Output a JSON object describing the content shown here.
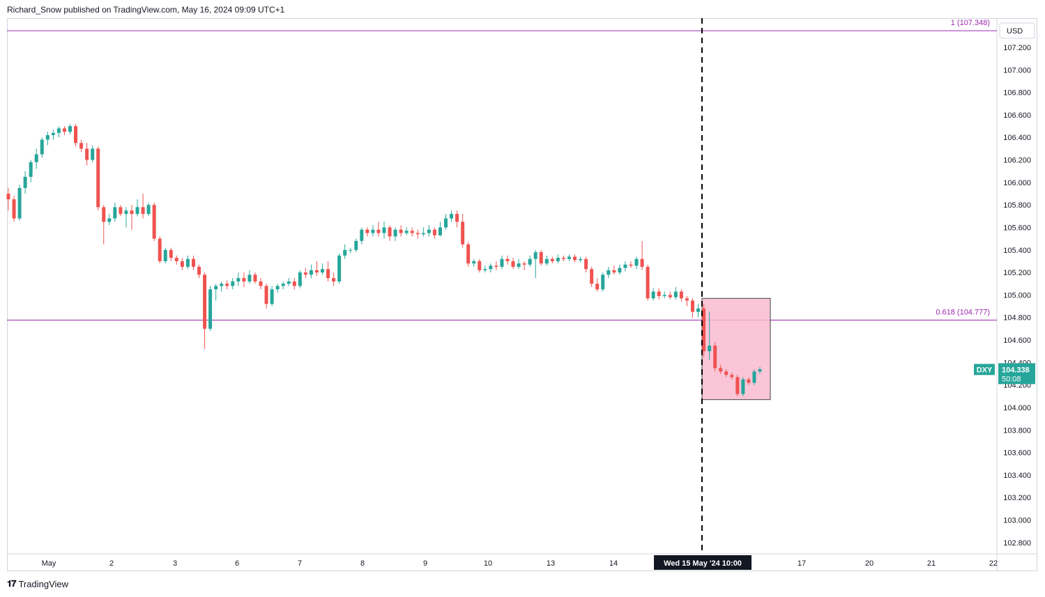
{
  "header": {
    "text": "Richard_Snow published on TradingView.com, May 16, 2024 09:09 UTC+1"
  },
  "footer": {
    "logo": "𝟏𝟕",
    "brand": "TradingView"
  },
  "chart_data": {
    "type": "candlestick",
    "symbol": "DXY",
    "currency": "USD",
    "last_price": "104.338",
    "countdown": "50:08",
    "ylim": [
      102.7,
      107.46
    ],
    "y_ticks": [
      102.8,
      103.0,
      103.2,
      103.4,
      103.6,
      103.8,
      104.0,
      104.2,
      104.4,
      104.6,
      104.8,
      105.0,
      105.2,
      105.4,
      105.6,
      105.8,
      106.0,
      106.2,
      106.4,
      106.6,
      106.8,
      107.0,
      107.2
    ],
    "x_ticks": [
      "May",
      "2",
      "3",
      "6",
      "7",
      "8",
      "9",
      "10",
      "13",
      "14",
      "17",
      "20",
      "21",
      "22"
    ],
    "crosshair_label": "Wed 15 May '24   10:00",
    "levels": [
      {
        "label": "1 (107.348)",
        "value": 107.348
      },
      {
        "label": "0.618 (104.777)",
        "value": 104.777
      }
    ],
    "highlight_box": {
      "price_top": 104.97,
      "price_bottom": 104.07
    },
    "colors": {
      "up": "#26a69a",
      "down": "#ef5350",
      "level": "#9c27b0",
      "box": "#f8bbd0",
      "badge": "#26a69a"
    },
    "candles": [
      [
        105.9,
        105.85,
        105.95,
        105.75
      ],
      [
        105.85,
        105.68,
        105.88,
        105.65
      ],
      [
        105.68,
        105.95,
        105.98,
        105.66
      ],
      [
        105.95,
        106.05,
        106.1,
        105.9
      ],
      [
        106.05,
        106.18,
        106.2,
        106.0
      ],
      [
        106.18,
        106.25,
        106.3,
        106.12
      ],
      [
        106.25,
        106.38,
        106.4,
        106.22
      ],
      [
        106.38,
        106.42,
        106.45,
        106.33
      ],
      [
        106.42,
        106.44,
        106.47,
        106.38
      ],
      [
        106.44,
        106.48,
        106.5,
        106.4
      ],
      [
        106.48,
        106.45,
        106.5,
        106.42
      ],
      [
        106.45,
        106.5,
        106.52,
        106.43
      ],
      [
        106.5,
        106.35,
        106.52,
        106.32
      ],
      [
        106.35,
        106.3,
        106.38,
        106.27
      ],
      [
        106.3,
        106.2,
        106.35,
        106.15
      ],
      [
        106.2,
        106.3,
        106.33,
        106.18
      ],
      [
        106.3,
        105.78,
        106.32,
        105.75
      ],
      [
        105.78,
        105.65,
        105.8,
        105.45
      ],
      [
        105.65,
        105.68,
        105.72,
        105.62
      ],
      [
        105.68,
        105.78,
        105.82,
        105.65
      ],
      [
        105.78,
        105.72,
        105.8,
        105.7
      ],
      [
        105.72,
        105.75,
        105.78,
        105.6
      ],
      [
        105.75,
        105.72,
        105.8,
        105.58
      ],
      [
        105.72,
        105.78,
        105.85,
        105.7
      ],
      [
        105.78,
        105.72,
        105.9,
        105.68
      ],
      [
        105.72,
        105.8,
        105.82,
        105.7
      ],
      [
        105.8,
        105.5,
        105.82,
        105.48
      ],
      [
        105.5,
        105.3,
        105.52,
        105.28
      ],
      [
        105.3,
        105.4,
        105.42,
        105.28
      ],
      [
        105.4,
        105.33,
        105.42,
        105.3
      ],
      [
        105.33,
        105.3,
        105.35,
        105.27
      ],
      [
        105.3,
        105.25,
        105.33,
        105.22
      ],
      [
        105.25,
        105.32,
        105.35,
        105.23
      ],
      [
        105.32,
        105.25,
        105.35,
        105.22
      ],
      [
        105.25,
        105.18,
        105.27,
        105.15
      ],
      [
        105.18,
        104.7,
        105.2,
        104.52
      ],
      [
        104.7,
        105.05,
        105.08,
        104.68
      ],
      [
        105.05,
        105.08,
        105.1,
        104.95
      ],
      [
        105.08,
        105.1,
        105.12,
        105.03
      ],
      [
        105.1,
        105.08,
        105.13,
        105.05
      ],
      [
        105.08,
        105.12,
        105.15,
        105.05
      ],
      [
        105.12,
        105.15,
        105.2,
        105.08
      ],
      [
        105.15,
        105.12,
        105.2,
        105.07
      ],
      [
        105.12,
        105.18,
        105.22,
        105.1
      ],
      [
        105.18,
        105.12,
        105.2,
        105.1
      ],
      [
        105.12,
        105.08,
        105.15,
        105.05
      ],
      [
        105.08,
        104.92,
        105.1,
        104.88
      ],
      [
        104.92,
        105.05,
        105.08,
        104.9
      ],
      [
        105.05,
        105.08,
        105.1,
        105.02
      ],
      [
        105.08,
        105.1,
        105.12,
        105.05
      ],
      [
        105.1,
        105.12,
        105.15,
        105.08
      ],
      [
        105.12,
        105.08,
        105.15,
        105.05
      ],
      [
        105.08,
        105.2,
        105.22,
        105.06
      ],
      [
        105.2,
        105.18,
        105.24,
        105.15
      ],
      [
        105.18,
        105.22,
        105.27,
        105.15
      ],
      [
        105.22,
        105.2,
        105.3,
        105.17
      ],
      [
        105.2,
        105.23,
        105.28,
        105.18
      ],
      [
        105.23,
        105.15,
        105.3,
        105.12
      ],
      [
        105.15,
        105.12,
        105.2,
        105.08
      ],
      [
        105.12,
        105.35,
        105.37,
        105.1
      ],
      [
        105.35,
        105.4,
        105.45,
        105.32
      ],
      [
        105.4,
        105.4,
        105.42,
        105.37
      ],
      [
        105.4,
        105.48,
        105.5,
        105.38
      ],
      [
        105.48,
        105.58,
        105.6,
        105.45
      ],
      [
        105.58,
        105.55,
        105.6,
        105.52
      ],
      [
        105.55,
        105.58,
        105.62,
        105.52
      ],
      [
        105.58,
        105.55,
        105.65,
        105.52
      ],
      [
        105.55,
        105.6,
        105.65,
        105.5
      ],
      [
        105.6,
        105.52,
        105.62,
        105.48
      ],
      [
        105.52,
        105.58,
        105.6,
        105.48
      ],
      [
        105.58,
        105.55,
        105.62,
        105.52
      ],
      [
        105.55,
        105.57,
        105.6,
        105.53
      ],
      [
        105.57,
        105.55,
        105.6,
        105.52
      ],
      [
        105.55,
        105.54,
        105.58,
        105.5
      ],
      [
        105.54,
        105.55,
        105.6,
        105.52
      ],
      [
        105.55,
        105.58,
        105.62,
        105.52
      ],
      [
        105.58,
        105.53,
        105.6,
        105.5
      ],
      [
        105.53,
        105.6,
        105.65,
        105.52
      ],
      [
        105.6,
        105.68,
        105.72,
        105.58
      ],
      [
        105.68,
        105.72,
        105.75,
        105.65
      ],
      [
        105.72,
        105.65,
        105.75,
        105.6
      ],
      [
        105.65,
        105.45,
        105.72,
        105.42
      ],
      [
        105.45,
        105.28,
        105.47,
        105.25
      ],
      [
        105.28,
        105.3,
        105.32,
        105.25
      ],
      [
        105.3,
        105.22,
        105.32,
        105.2
      ],
      [
        105.22,
        105.23,
        105.26,
        105.2
      ],
      [
        105.23,
        105.26,
        105.28,
        105.2
      ],
      [
        105.26,
        105.25,
        105.3,
        105.22
      ],
      [
        105.25,
        105.32,
        105.35,
        105.23
      ],
      [
        105.32,
        105.3,
        105.35,
        105.27
      ],
      [
        105.3,
        105.25,
        105.33,
        105.23
      ],
      [
        105.25,
        105.28,
        105.32,
        105.23
      ],
      [
        105.28,
        105.27,
        105.3,
        105.22
      ],
      [
        105.27,
        105.32,
        105.35,
        105.25
      ],
      [
        105.32,
        105.38,
        105.4,
        105.15
      ],
      [
        105.38,
        105.28,
        105.4,
        105.26
      ],
      [
        105.28,
        105.32,
        105.35,
        105.26
      ],
      [
        105.32,
        105.3,
        105.34,
        105.28
      ],
      [
        105.3,
        105.33,
        105.36,
        105.28
      ],
      [
        105.33,
        105.32,
        105.35,
        105.3
      ],
      [
        105.32,
        105.34,
        105.36,
        105.3
      ],
      [
        105.34,
        105.31,
        105.36,
        105.29
      ],
      [
        105.31,
        105.32,
        105.34,
        105.29
      ],
      [
        105.32,
        105.23,
        105.34,
        105.2
      ],
      [
        105.23,
        105.1,
        105.25,
        105.07
      ],
      [
        105.1,
        105.05,
        105.15,
        105.03
      ],
      [
        105.05,
        105.18,
        105.2,
        105.03
      ],
      [
        105.18,
        105.22,
        105.25,
        105.15
      ],
      [
        105.22,
        105.2,
        105.26,
        105.18
      ],
      [
        105.2,
        105.24,
        105.27,
        105.18
      ],
      [
        105.24,
        105.27,
        105.3,
        105.21
      ],
      [
        105.27,
        105.26,
        105.3,
        105.24
      ],
      [
        105.26,
        105.32,
        105.34,
        105.23
      ],
      [
        105.32,
        105.25,
        105.48,
        105.22
      ],
      [
        105.25,
        104.97,
        105.27,
        104.95
      ],
      [
        104.97,
        105.03,
        105.06,
        104.95
      ],
      [
        105.03,
        104.99,
        105.06,
        104.96
      ],
      [
        104.99,
        105.0,
        105.03,
        104.97
      ],
      [
        105.0,
        104.98,
        105.03,
        104.96
      ],
      [
        104.98,
        105.03,
        105.07,
        104.96
      ],
      [
        105.03,
        104.97,
        105.05,
        104.94
      ],
      [
        104.97,
        104.95,
        104.99,
        104.9
      ],
      [
        104.95,
        104.85,
        104.97,
        104.8
      ],
      [
        104.85,
        104.88,
        104.92,
        104.8
      ],
      [
        104.88,
        104.5,
        104.92,
        104.45
      ],
      [
        104.5,
        104.55,
        104.85,
        104.42
      ],
      [
        104.55,
        104.35,
        104.58,
        104.32
      ],
      [
        104.35,
        104.32,
        104.38,
        104.3
      ],
      [
        104.32,
        104.29,
        104.34,
        104.27
      ],
      [
        104.29,
        104.27,
        104.31,
        104.25
      ],
      [
        104.27,
        104.12,
        104.29,
        104.1
      ],
      [
        104.12,
        104.25,
        104.27,
        104.1
      ],
      [
        104.25,
        104.22,
        104.27,
        104.2
      ],
      [
        104.22,
        104.32,
        104.34,
        104.2
      ],
      [
        104.32,
        104.34,
        104.36,
        104.3
      ]
    ]
  }
}
